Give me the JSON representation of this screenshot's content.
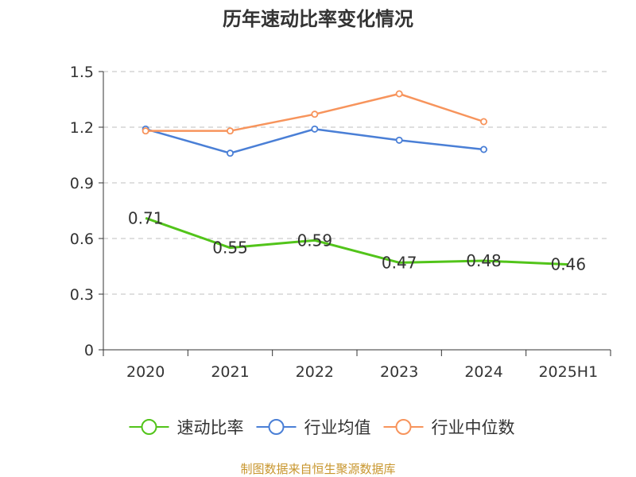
{
  "chart_data": {
    "type": "line",
    "title": "历年速动比率变化情况",
    "categories": [
      "2020",
      "2021",
      "2022",
      "2023",
      "2024",
      "2025H1"
    ],
    "y_ticks": [
      "0",
      "0.3",
      "0.6",
      "0.9",
      "1.2",
      "1.5"
    ],
    "ylim": [
      0,
      1.5
    ],
    "grid": true,
    "legend_position": "bottom",
    "series": [
      {
        "name": "速动比率",
        "color": "#52c41a",
        "show_labels": true,
        "values": [
          0.71,
          0.55,
          0.59,
          0.47,
          0.48,
          0.46
        ],
        "labels": [
          "0.71",
          "0.55",
          "0.59",
          "0.47",
          "0.48",
          "0.46"
        ]
      },
      {
        "name": "行业均值",
        "color": "#4a7fd6",
        "show_labels": false,
        "values": [
          1.19,
          1.06,
          1.19,
          1.13,
          1.08,
          null
        ]
      },
      {
        "name": "行业中位数",
        "color": "#f7945c",
        "show_labels": false,
        "values": [
          1.18,
          1.18,
          1.27,
          1.38,
          1.23,
          null
        ]
      }
    ]
  },
  "source": {
    "text": "制图数据来自恒生聚源数据库",
    "color": "#c8962e"
  }
}
